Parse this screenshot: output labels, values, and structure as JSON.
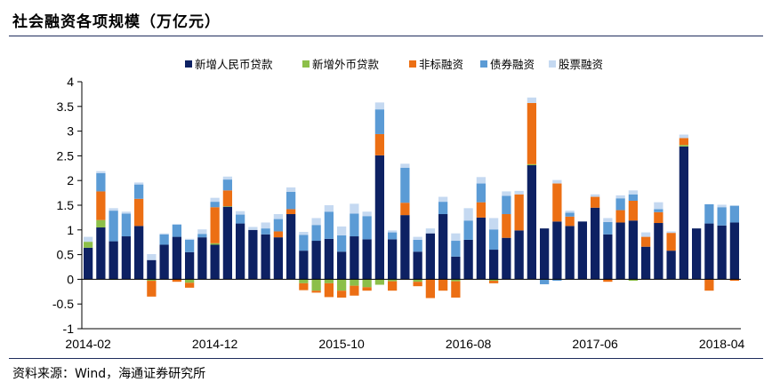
{
  "page": {
    "title": "社会融资各项规模（万亿元）",
    "source": "资料来源：Wind，海通证券研究所"
  },
  "colors": {
    "rmb_loans": "#0d2163",
    "fx_loans": "#8cbf49",
    "off_balance": "#ec6f14",
    "bonds": "#5b9bd5",
    "equity": "#c5d9f1",
    "axis": "#000000",
    "rule": "#1f2d5c"
  },
  "chart_data": {
    "type": "bar",
    "stacked": true,
    "title": "社会融资各项规模（万亿元）",
    "xlabel": "",
    "ylabel": "",
    "ylim": [
      -1,
      4
    ],
    "yticks": [
      -1,
      -0.5,
      0,
      0.5,
      1,
      1.5,
      2,
      2.5,
      3,
      3.5,
      4
    ],
    "x_tick_labels": [
      "2014-02",
      "2014-12",
      "2015-10",
      "2016-08",
      "2017-06",
      "2018-04"
    ],
    "legend_position": "top-center",
    "categories": [
      "2014-02",
      "2014-03",
      "2014-04",
      "2014-05",
      "2014-06",
      "2014-07",
      "2014-08",
      "2014-09",
      "2014-10",
      "2014-11",
      "2014-12",
      "2015-01",
      "2015-02",
      "2015-03",
      "2015-04",
      "2015-05",
      "2015-06",
      "2015-07",
      "2015-08",
      "2015-09",
      "2015-10",
      "2015-11",
      "2015-12",
      "2016-01",
      "2016-02",
      "2016-03",
      "2016-04",
      "2016-05",
      "2016-06",
      "2016-07",
      "2016-08",
      "2016-09",
      "2016-10",
      "2016-11",
      "2016-12",
      "2017-01",
      "2017-02",
      "2017-03",
      "2017-04",
      "2017-05",
      "2017-06",
      "2017-07",
      "2017-08",
      "2017-09",
      "2017-10",
      "2017-11",
      "2017-12",
      "2018-01",
      "2018-02",
      "2018-03",
      "2018-04",
      "2018-05"
    ],
    "series": [
      {
        "name": "新增人民币贷款",
        "color_key": "rmb_loans",
        "values": [
          0.64,
          1.05,
          0.77,
          0.87,
          1.08,
          0.39,
          0.7,
          0.86,
          0.55,
          0.85,
          0.7,
          1.47,
          1.13,
          1.0,
          0.91,
          0.85,
          1.32,
          0.58,
          0.78,
          0.82,
          0.56,
          0.87,
          0.81,
          2.51,
          0.81,
          1.3,
          0.56,
          0.93,
          1.32,
          0.46,
          0.8,
          1.25,
          0.6,
          0.84,
          0.99,
          2.31,
          1.03,
          1.17,
          1.08,
          1.17,
          1.45,
          0.91,
          1.15,
          1.19,
          0.66,
          1.14,
          0.58,
          2.69,
          1.03,
          1.13,
          1.09,
          1.15
        ]
      },
      {
        "name": "新增外币贷款",
        "color_key": "fx_loans",
        "values": [
          0.12,
          0.15,
          -0.01,
          0.0,
          0.0,
          -0.03,
          0.0,
          0.0,
          -0.07,
          0.0,
          0.03,
          0.01,
          0.0,
          0.0,
          0.0,
          0.0,
          0.0,
          -0.08,
          -0.23,
          -0.08,
          -0.23,
          -0.13,
          -0.16,
          -0.11,
          -0.04,
          0.0,
          -0.05,
          0.0,
          0.0,
          -0.04,
          0.0,
          0.0,
          -0.03,
          0.0,
          0.0,
          0.02,
          0.0,
          0.0,
          0.0,
          0.0,
          0.0,
          0.0,
          0.0,
          -0.03,
          0.0,
          0.0,
          0.0,
          0.03,
          0.0,
          0.0,
          0.0,
          0.0
        ]
      },
      {
        "name": "非标融资",
        "color_key": "off_balance",
        "values": [
          0.0,
          0.58,
          0.0,
          0.0,
          0.55,
          -0.32,
          0.0,
          -0.05,
          -0.1,
          0.0,
          0.73,
          0.32,
          0.0,
          0.0,
          0.0,
          0.12,
          0.1,
          -0.14,
          -0.04,
          -0.28,
          -0.14,
          -0.2,
          -0.07,
          0.43,
          -0.19,
          0.25,
          -0.09,
          -0.38,
          -0.23,
          -0.33,
          0.0,
          0.31,
          -0.05,
          0.48,
          0.73,
          1.24,
          0.0,
          0.77,
          0.19,
          0.0,
          0.22,
          -0.05,
          0.25,
          0.4,
          0.2,
          0.22,
          0.36,
          0.14,
          0.0,
          -0.23,
          0.0,
          -0.03
        ]
      },
      {
        "name": "债券融资",
        "color_key": "bonds",
        "values": [
          0.0,
          0.37,
          0.62,
          0.46,
          0.29,
          0.0,
          0.21,
          0.25,
          0.25,
          0.07,
          0.11,
          0.22,
          0.18,
          0.0,
          0.12,
          0.25,
          0.35,
          0.32,
          0.32,
          0.55,
          0.33,
          0.46,
          0.47,
          0.5,
          0.14,
          0.71,
          0.24,
          0.0,
          0.25,
          0.32,
          0.39,
          0.38,
          0.41,
          0.37,
          0.0,
          0.0,
          -0.1,
          -0.03,
          0.08,
          0.0,
          0.0,
          0.25,
          0.24,
          0.13,
          0.0,
          0.06,
          0.0,
          0.0,
          0.0,
          0.39,
          0.37,
          0.34
        ]
      },
      {
        "name": "股票融资",
        "color_key": "equity",
        "values": [
          0.1,
          0.04,
          0.05,
          0.04,
          0.04,
          0.12,
          0.02,
          0.0,
          0.02,
          0.09,
          0.08,
          0.06,
          0.07,
          0.06,
          0.12,
          0.1,
          0.09,
          0.06,
          0.14,
          0.13,
          0.18,
          0.2,
          0.09,
          0.14,
          0.04,
          0.08,
          0.06,
          0.1,
          0.1,
          0.15,
          0.25,
          0.13,
          0.23,
          0.09,
          0.07,
          0.11,
          0.0,
          0.07,
          0.04,
          0.0,
          0.05,
          0.08,
          0.06,
          0.08,
          0.09,
          0.14,
          0.03,
          0.07,
          0.0,
          0.0,
          0.05,
          0.0
        ]
      }
    ]
  }
}
